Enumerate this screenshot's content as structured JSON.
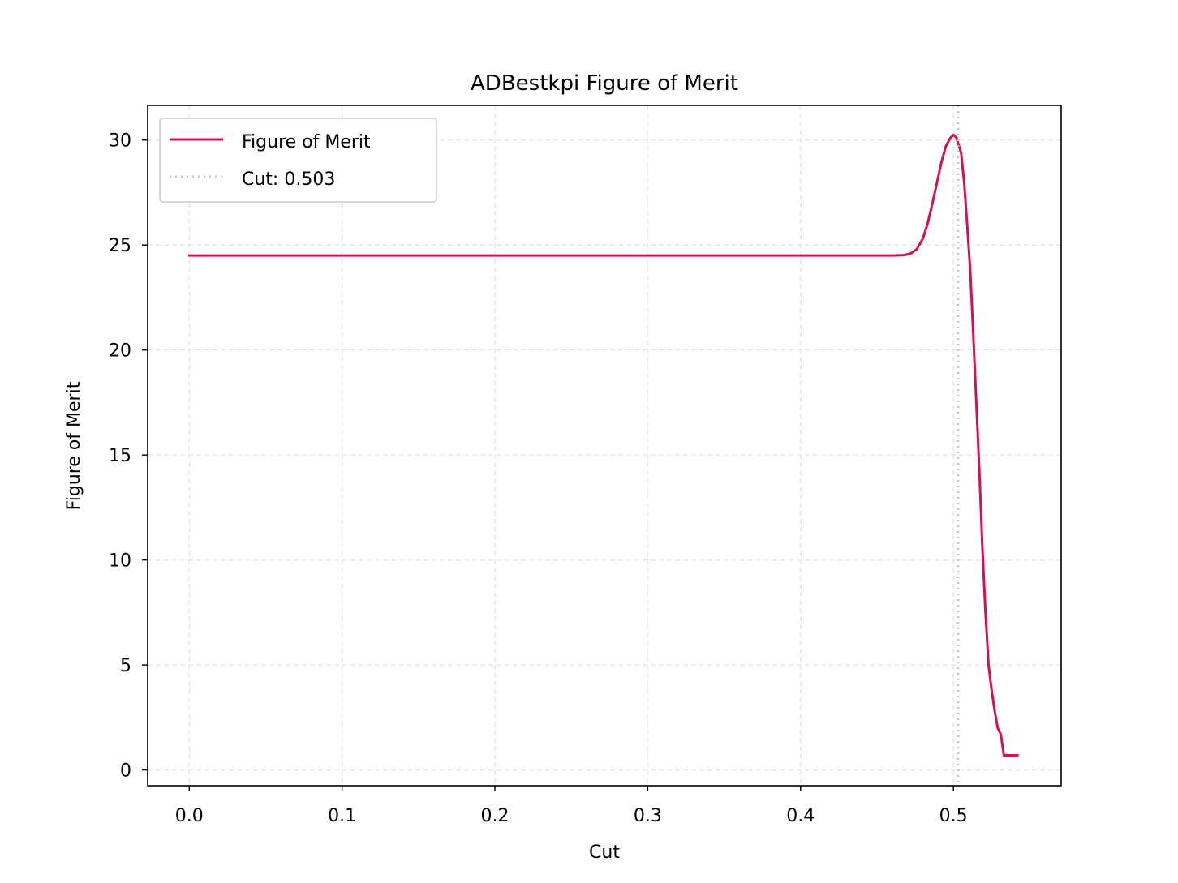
{
  "chart_data": {
    "type": "line",
    "title": "ADBestkpi Figure of Merit",
    "xlabel": "Cut",
    "ylabel": "Figure of Merit",
    "xlim": [
      -0.0272,
      0.5705
    ],
    "ylim": [
      -0.75,
      31.65
    ],
    "xticks": [
      0.0,
      0.1,
      0.2,
      0.3,
      0.4,
      0.5
    ],
    "xtick_labels": [
      "0.0",
      "0.1",
      "0.2",
      "0.3",
      "0.4",
      "0.5"
    ],
    "yticks": [
      0,
      5,
      10,
      15,
      20,
      25,
      30
    ],
    "ytick_labels": [
      "0",
      "5",
      "10",
      "15",
      "20",
      "25",
      "30"
    ],
    "grid": true,
    "legend_position": "top-left",
    "series": [
      {
        "name": "Figure of Merit",
        "color": "#d6114f",
        "style": "solid",
        "x": [
          0.0,
          0.1,
          0.2,
          0.3,
          0.4,
          0.46,
          0.468,
          0.472,
          0.476,
          0.48,
          0.483,
          0.486,
          0.489,
          0.492,
          0.495,
          0.498,
          0.5,
          0.502,
          0.505,
          0.507,
          0.509,
          0.511,
          0.513,
          0.515,
          0.517,
          0.519,
          0.521,
          0.523,
          0.525,
          0.527,
          0.529,
          0.531,
          0.533,
          0.535,
          0.536,
          0.538,
          0.539,
          0.54,
          0.5405,
          0.542
        ],
        "y": [
          24.5,
          24.5,
          24.5,
          24.5,
          24.5,
          24.5,
          24.52,
          24.6,
          24.8,
          25.3,
          26.0,
          26.9,
          27.9,
          28.9,
          29.7,
          30.1,
          30.25,
          30.1,
          29.4,
          28.0,
          26.0,
          23.8,
          20.7,
          17.5,
          14.2,
          10.5,
          7.5,
          5.0,
          3.8,
          2.8,
          2.0,
          1.7,
          0.7,
          0.7,
          0.7,
          0.7,
          0.7,
          0.7,
          0.7,
          0.7
        ]
      },
      {
        "name": "Cut: 0.503",
        "color": "#c8c8c8",
        "style": "dotted",
        "x_constant": 0.503
      }
    ]
  }
}
